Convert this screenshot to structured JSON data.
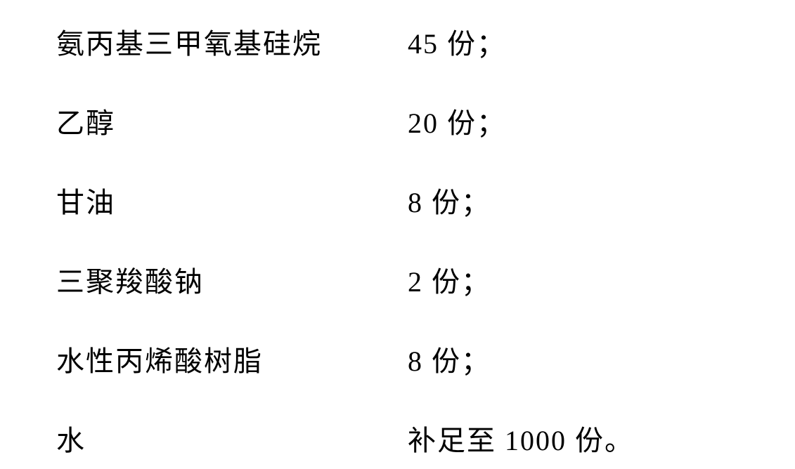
{
  "ingredients": [
    {
      "name": "氨丙基三甲氧基硅烷",
      "amount": "45 份；"
    },
    {
      "name": "乙醇",
      "amount": "20 份；"
    },
    {
      "name": "甘油",
      "amount": "8 份；"
    },
    {
      "name": "三聚羧酸钠",
      "amount": "2 份；"
    },
    {
      "name": "水性丙烯酸树脂",
      "amount": "8 份；"
    },
    {
      "name": "水",
      "amount": "补足至 1000 份。"
    }
  ],
  "styling": {
    "font_size": 40,
    "font_family": "SimSun",
    "text_color": "#000000",
    "background_color": "#ffffff",
    "name_column_width": 500,
    "row_gap": 55,
    "letter_spacing": 2
  }
}
